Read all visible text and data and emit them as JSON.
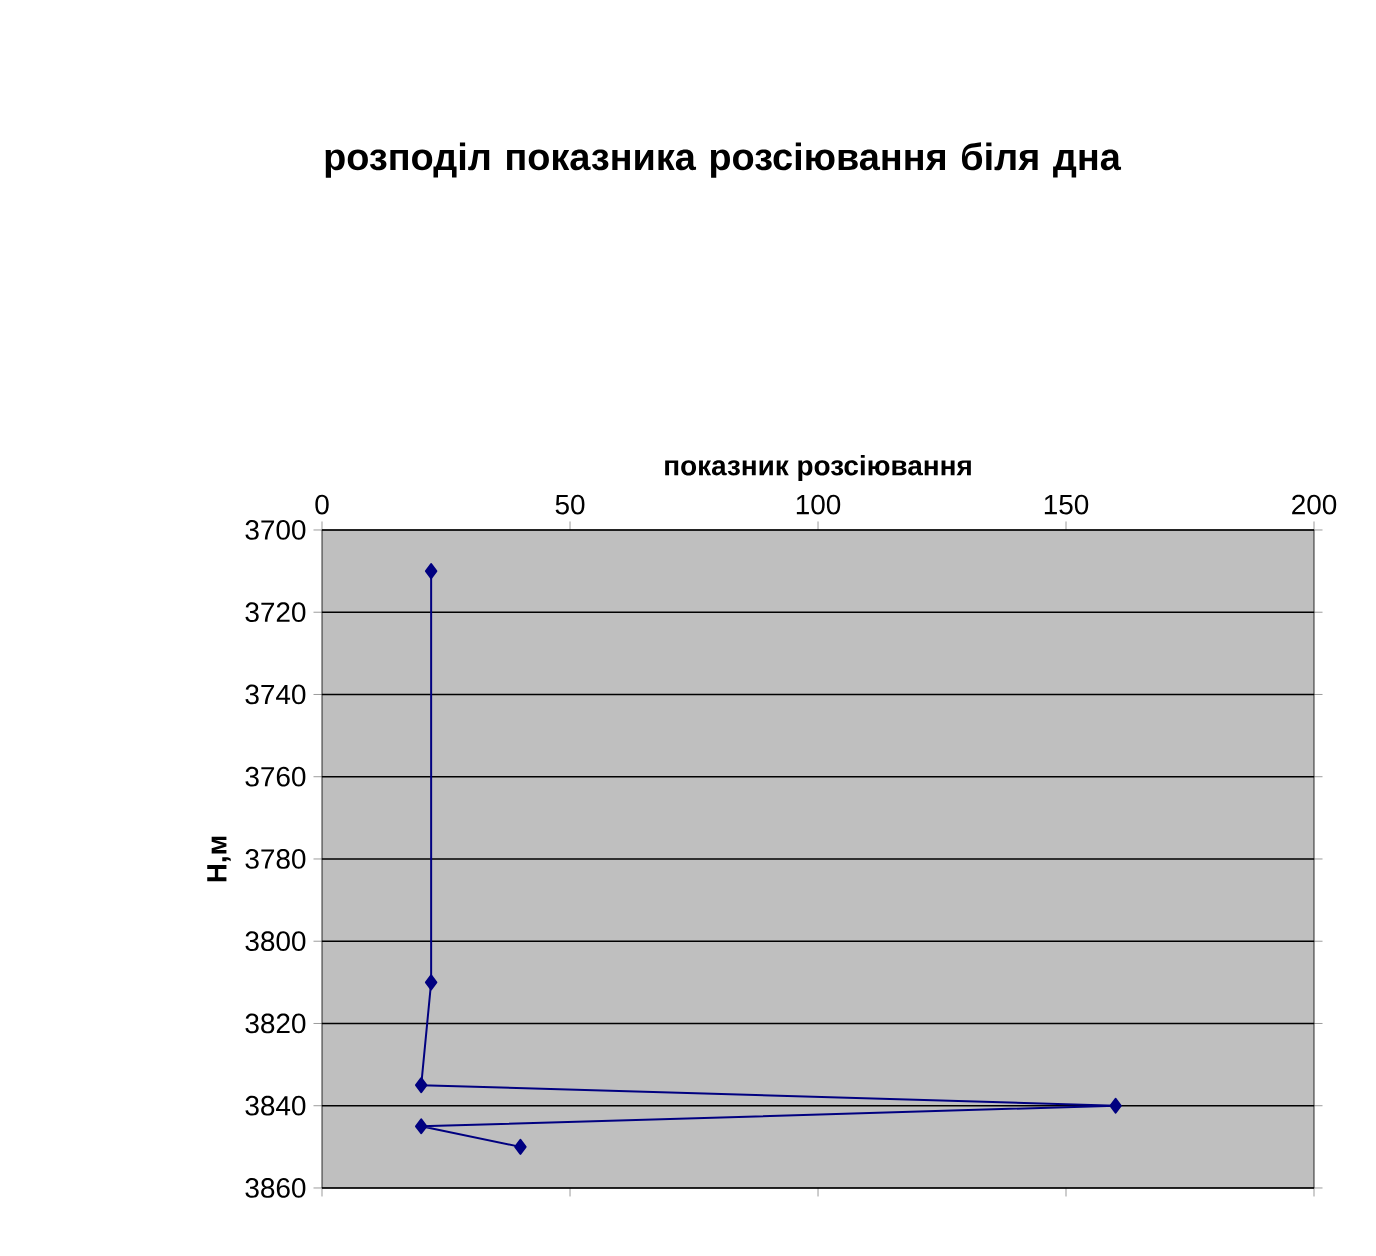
{
  "chart_data": {
    "type": "line",
    "title": "розподіл показника розсіювання біля дна",
    "xlabel": "показник розсіювання",
    "ylabel": "H,м",
    "x": [
      22,
      22,
      20,
      160,
      20,
      40
    ],
    "series": [
      {
        "color": "#000080",
        "values": [
          3710,
          3810,
          3835,
          3840,
          3845,
          3850
        ]
      }
    ],
    "xlim": [
      0,
      200
    ],
    "xticks": [
      0,
      50,
      100,
      150,
      200
    ],
    "ylim": [
      3860,
      3700
    ],
    "yticks": [
      3700,
      3720,
      3740,
      3760,
      3780,
      3800,
      3820,
      3840,
      3860
    ],
    "grid": "y",
    "marker": "diamond",
    "line_style": "solid"
  }
}
